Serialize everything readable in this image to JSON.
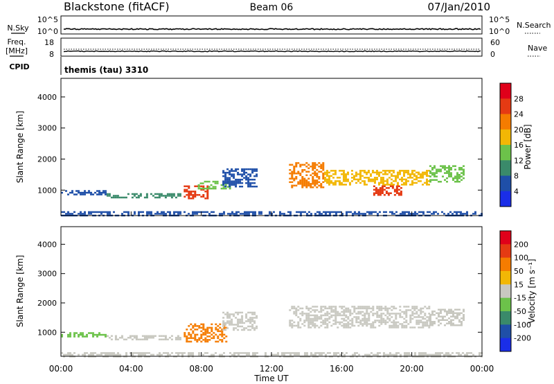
{
  "header": {
    "title": "Blackstone (fitACF)",
    "beam": "Beam 06",
    "date": "07/Jan/2010"
  },
  "top_panels": {
    "nsky": {
      "label": "N.Sky",
      "ticks": [
        "10^5",
        "10^0"
      ],
      "right_label": "N.Search",
      "right_ticks": [
        "10^5",
        "10^0"
      ]
    },
    "freq": {
      "label_lines": [
        "Freq.",
        "[MHz]"
      ],
      "ticks": [
        "18",
        "8"
      ],
      "right_label": "Nave",
      "right_ticks": [
        "60",
        "0"
      ]
    },
    "cpid": {
      "label": "CPID",
      "text": "themis (tau) 3310"
    }
  },
  "chart_data": [
    {
      "type": "heatmap",
      "panel": "power",
      "ylabel": "Slant Range [km]",
      "xlabel": "",
      "x_ticks": [
        "00:00",
        "04:00",
        "08:00",
        "12:00",
        "16:00",
        "20:00",
        "00:00"
      ],
      "y_ticks": [
        1000,
        2000,
        3000,
        4000
      ],
      "xlim": [
        0,
        24
      ],
      "ylim": [
        180,
        4600
      ],
      "colorbar": {
        "label": "Power [dB]",
        "ticks": [
          4,
          8,
          12,
          16,
          20,
          24,
          28
        ],
        "colors": [
          "#1a2ee8",
          "#1f4fa8",
          "#3a8a6a",
          "#6cc24a",
          "#f2b705",
          "#f57c00",
          "#e53a13",
          "#e0001a"
        ]
      },
      "scatter_regions": [
        {
          "t_start": 0.0,
          "t_end": 2.6,
          "range_low": 850,
          "range_high": 1000,
          "color": "#1f4fa8"
        },
        {
          "t_start": 2.6,
          "t_end": 6.8,
          "range_low": 780,
          "range_high": 900,
          "color": "#3a8a6a"
        },
        {
          "t_start": 7.0,
          "t_end": 8.4,
          "range_low": 750,
          "range_high": 1150,
          "color": "#e53a13"
        },
        {
          "t_start": 7.8,
          "t_end": 9.6,
          "range_low": 1050,
          "range_high": 1300,
          "color": "#6cc24a"
        },
        {
          "t_start": 9.2,
          "t_end": 11.2,
          "range_low": 1100,
          "range_high": 1700,
          "color": "#1f4fa8"
        },
        {
          "t_start": 13.0,
          "t_end": 15.0,
          "range_low": 1100,
          "range_high": 1900,
          "color": "#f57c00"
        },
        {
          "t_start": 15.0,
          "t_end": 21.0,
          "range_low": 1150,
          "range_high": 1650,
          "color": "#f2b705"
        },
        {
          "t_start": 17.8,
          "t_end": 19.4,
          "range_low": 850,
          "range_high": 1150,
          "color": "#e53a13"
        },
        {
          "t_start": 21.0,
          "t_end": 23.0,
          "range_low": 1250,
          "range_high": 1800,
          "color": "#6cc24a"
        },
        {
          "t_start": 0.0,
          "t_end": 24.0,
          "range_low": 200,
          "range_high": 320,
          "color": "#1f4fa8"
        }
      ]
    },
    {
      "type": "heatmap",
      "panel": "velocity",
      "ylabel": "Slant Range [km]",
      "xlabel": "Time UT",
      "x_ticks": [
        "00:00",
        "04:00",
        "08:00",
        "12:00",
        "16:00",
        "20:00",
        "00:00"
      ],
      "y_ticks": [
        1000,
        2000,
        3000,
        4000
      ],
      "xlim": [
        0,
        24
      ],
      "ylim": [
        180,
        4600
      ],
      "colorbar": {
        "label": "Velocity [m s⁻¹]",
        "ticks": [
          200,
          100,
          50,
          15,
          -15,
          -50,
          -100,
          -200
        ],
        "colors": [
          "#1a2ee8",
          "#1f4fa8",
          "#3a8a6a",
          "#6cc24a",
          "#c8c8c0",
          "#f2b705",
          "#f57c00",
          "#e53a13",
          "#e0001a"
        ]
      },
      "scatter_regions": [
        {
          "t_start": 0.0,
          "t_end": 2.6,
          "range_low": 850,
          "range_high": 1000,
          "color": "#6cc24a"
        },
        {
          "t_start": 2.6,
          "t_end": 6.8,
          "range_low": 780,
          "range_high": 900,
          "color": "#c8c8c0"
        },
        {
          "t_start": 7.0,
          "t_end": 9.4,
          "range_low": 650,
          "range_high": 1300,
          "color": "#f57c00"
        },
        {
          "t_start": 9.2,
          "t_end": 11.2,
          "range_low": 1100,
          "range_high": 1700,
          "color": "#c8c8c0"
        },
        {
          "t_start": 13.0,
          "t_end": 21.0,
          "range_low": 1150,
          "range_high": 1900,
          "color": "#c8c8c0"
        },
        {
          "t_start": 21.0,
          "t_end": 23.0,
          "range_low": 1250,
          "range_high": 1800,
          "color": "#c8c8c0"
        },
        {
          "t_start": 0.0,
          "t_end": 24.0,
          "range_low": 200,
          "range_high": 320,
          "color": "#c8c8c0"
        }
      ]
    }
  ]
}
